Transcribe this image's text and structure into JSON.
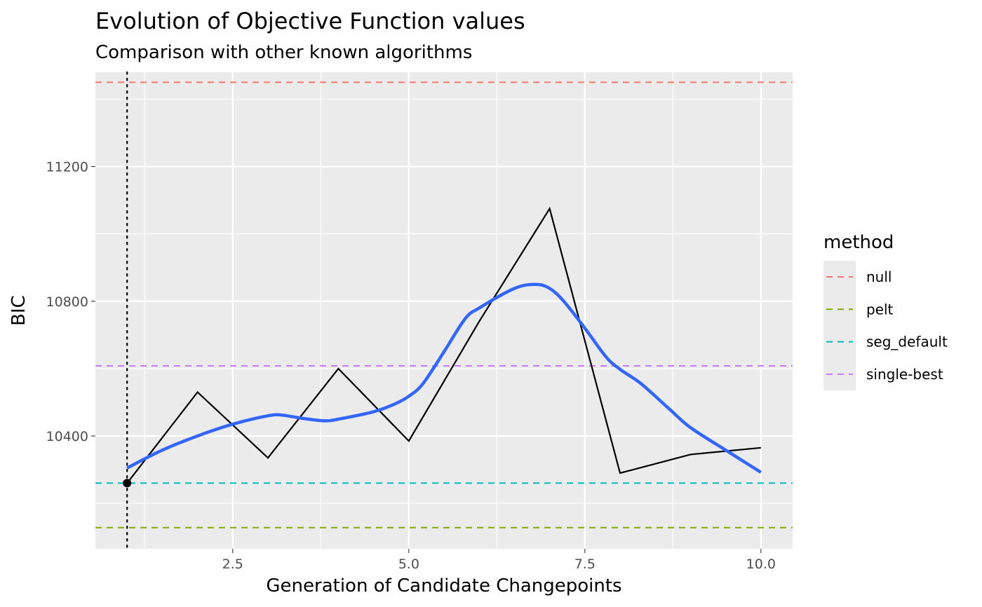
{
  "chart_data": {
    "type": "line",
    "title": "Evolution of Objective Function values",
    "subtitle": "Comparison with other known algorithms",
    "xlabel": "Generation of Candidate Changepoints",
    "ylabel": "BIC",
    "xlim": [
      0.55,
      10.45
    ],
    "ylim": [
      10065,
      11480
    ],
    "x_ticks": [
      2.5,
      5.0,
      7.5,
      10.0
    ],
    "x_tick_labels": [
      "2.5",
      "5.0",
      "7.5",
      "10.0"
    ],
    "y_ticks": [
      10400,
      10800,
      11200
    ],
    "y_tick_labels": [
      "10400",
      "10800",
      "11200"
    ],
    "grid": true,
    "series": [
      {
        "x": [
          1,
          2,
          3,
          4,
          5,
          6,
          7,
          8,
          9,
          10
        ],
        "values": [
          10260,
          10530,
          10335,
          10600,
          10385,
          10740,
          11075,
          10290,
          10345,
          10365
        ],
        "color": "#000000"
      }
    ],
    "smooth": {
      "x": [
        1,
        1.5,
        2,
        2.5,
        3,
        3.2,
        3.5,
        3.8,
        4,
        4.5,
        4.8,
        5,
        5.2,
        5.5,
        5.8,
        6,
        6.5,
        6.8,
        7,
        7.2,
        7.5,
        7.8,
        8,
        8.3,
        8.7,
        9,
        9.5,
        10
      ],
      "values": [
        10305,
        10358,
        10400,
        10435,
        10460,
        10462,
        10452,
        10445,
        10450,
        10472,
        10495,
        10518,
        10555,
        10650,
        10748,
        10780,
        10838,
        10850,
        10838,
        10800,
        10720,
        10635,
        10598,
        10555,
        10480,
        10425,
        10358,
        10292
      ],
      "color": "#3366FF"
    },
    "point": {
      "x": 1,
      "y": 10260
    },
    "vline": {
      "x": 1,
      "style": "dotted"
    },
    "legend": {
      "title": "method",
      "position": "right",
      "items": [
        {
          "label": "null",
          "color": "#F8766D",
          "y": 11450
        },
        {
          "label": "pelt",
          "color": "#7CAE00",
          "y": 10128
        },
        {
          "label": "seg_default",
          "color": "#00BFC4",
          "y": 10260
        },
        {
          "label": "single-best",
          "color": "#C77CFF",
          "y": 10608
        }
      ]
    }
  }
}
